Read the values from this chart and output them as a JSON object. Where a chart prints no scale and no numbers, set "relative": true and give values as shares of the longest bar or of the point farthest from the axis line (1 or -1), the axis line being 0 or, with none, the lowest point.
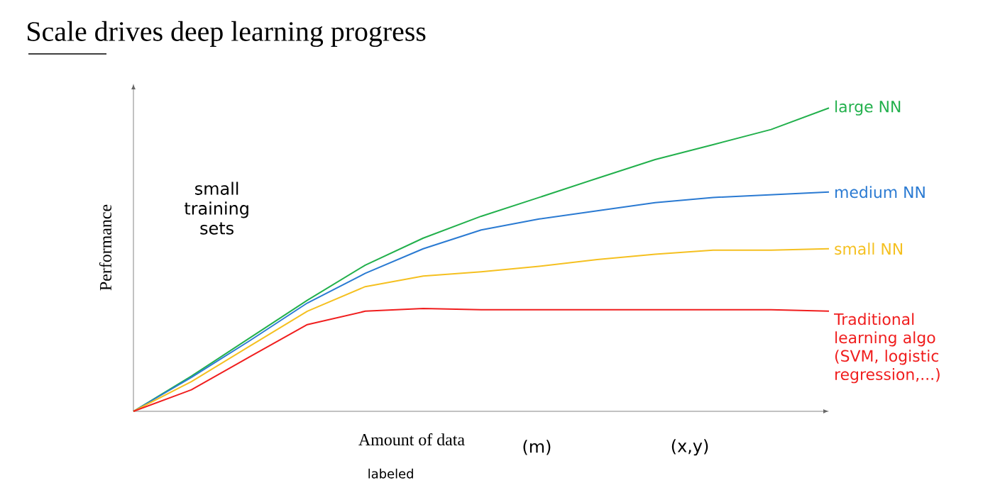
{
  "chart_data": {
    "type": "line",
    "title": "Scale drives deep learning progress",
    "xlabel": "Amount of data",
    "ylabel": "Performance",
    "relative": true,
    "categories": [
      null,
      null,
      null,
      null,
      null,
      null,
      null,
      null,
      null,
      null,
      null,
      null,
      null
    ],
    "series": [
      {
        "name": "large NN",
        "color": "#22b04c",
        "values": [
          0,
          0.116,
          0.241,
          0.366,
          0.482,
          0.571,
          0.643,
          0.705,
          0.768,
          0.83,
          0.879,
          0.929,
          1
        ]
      },
      {
        "name": "medium NN",
        "color": "#2a7ad2",
        "values": [
          0,
          0.112,
          0.232,
          0.357,
          0.455,
          0.536,
          0.598,
          0.634,
          0.661,
          0.688,
          0.705,
          0.714,
          0.723
        ]
      },
      {
        "name": "small NN",
        "color": "#f5c020",
        "values": [
          0,
          0.098,
          0.214,
          0.33,
          0.411,
          0.446,
          0.46,
          0.478,
          0.5,
          0.518,
          0.531,
          0.531,
          0.536
        ]
      },
      {
        "name": "Traditional learning algo (SVM, logistic regression,...)",
        "color": "#f01e1e",
        "values": [
          0,
          0.071,
          0.179,
          0.286,
          0.33,
          0.339,
          0.335,
          0.335,
          0.335,
          0.335,
          0.335,
          0.335,
          0.33
        ]
      }
    ],
    "annotations": [
      "small training sets",
      "(m)",
      "labeled",
      "(x,y)"
    ],
    "line_style": "solid"
  }
}
